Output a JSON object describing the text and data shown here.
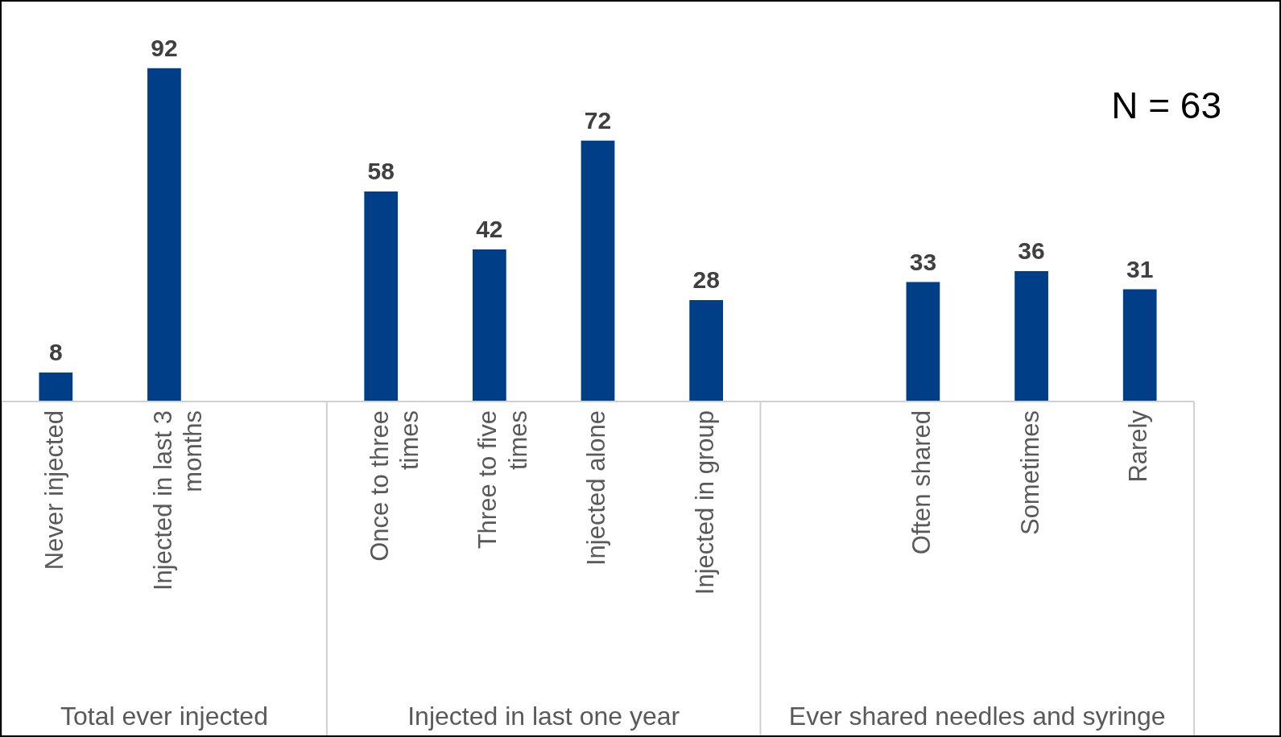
{
  "chart_data": {
    "type": "bar",
    "categories": [
      "Never injected",
      "Injected in last 3 months",
      null,
      "Once to three times",
      "Three to five times",
      "Injected alone",
      "Injected in group",
      null,
      "Often shared",
      "Sometimes",
      "Rarely"
    ],
    "values": [
      8,
      92,
      null,
      58,
      42,
      72,
      28,
      null,
      33,
      36,
      31
    ],
    "color": "#003f87",
    "data_labels": true,
    "legend": false,
    "annotations": [
      "N = 63",
      "Total ever injected",
      "Injected in last one year",
      "Ever shared needles and syringe"
    ]
  }
}
